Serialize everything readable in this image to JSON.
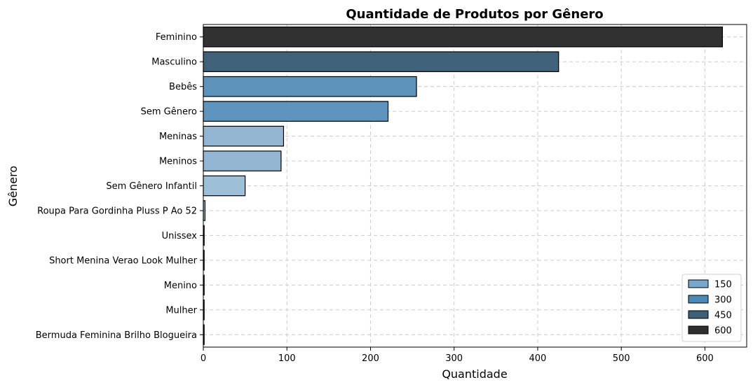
{
  "chart_data": {
    "type": "bar",
    "orientation": "horizontal",
    "title": "Quantidade de Produtos por Gênero",
    "xlabel": "Quantidade",
    "ylabel": "Gênero",
    "xlim": [
      0,
      650
    ],
    "xticks": [
      0,
      100,
      200,
      300,
      400,
      500,
      600
    ],
    "grid": true,
    "categories": [
      "Feminino",
      "Masculino",
      "Bebês",
      "Sem Gênero",
      "Meninas",
      "Meninos",
      "Sem Gênero Infantil",
      "Roupa Para Gordinha Pluss P Ao 52",
      "Unissex",
      "Short Menina Verao Look Mulher",
      "Menino",
      "Mulher",
      "Bermuda Feminina Brilho Blogueira"
    ],
    "values": [
      621,
      425,
      255,
      221,
      96,
      93,
      50,
      2,
      1,
      1,
      1,
      1,
      1
    ],
    "colors": [
      "#313131",
      "#40617a",
      "#5d92bb",
      "#5e94bd",
      "#92b6d1",
      "#93b7d2",
      "#9dc0d8",
      "#a9c8dd",
      "#a9c8dd",
      "#a9c8dd",
      "#a9c8dd",
      "#a9c8dd",
      "#a9c8dd"
    ],
    "legend": {
      "placement": "lower-right",
      "entries": [
        {
          "label": "150",
          "color": "#7aa8cb"
        },
        {
          "label": "300",
          "color": "#4a88b8"
        },
        {
          "label": "450",
          "color": "#3d5e77"
        },
        {
          "label": "600",
          "color": "#2f2f2f"
        }
      ]
    }
  }
}
